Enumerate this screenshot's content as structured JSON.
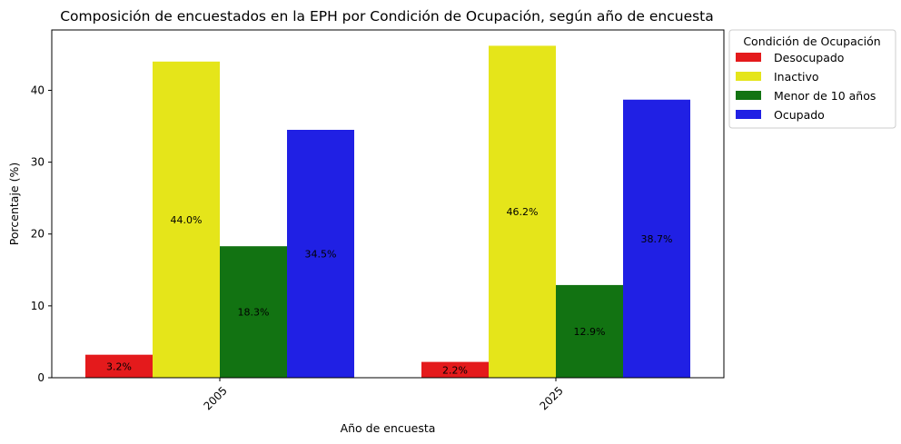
{
  "chart_data": {
    "type": "bar",
    "title": "Composición de encuestados en la EPH por Condición de Ocupación, según año de encuesta",
    "xlabel": "Año de encuesta",
    "ylabel": "Porcentaje (%)",
    "categories": [
      "2005",
      "2025"
    ],
    "ylim": [
      0,
      48.4
    ],
    "yticks": [
      "0",
      "10",
      "20",
      "30",
      "40"
    ],
    "grid": false,
    "legend": {
      "title": "Condición de Ocupación",
      "placement": "outside-top-right"
    },
    "series": [
      {
        "name": "Desocupado",
        "color": "#e41a1c",
        "values": [
          3.2,
          2.2
        ],
        "labels": [
          "3.2%",
          "2.2%"
        ]
      },
      {
        "name": "Inactivo",
        "color": "#e5e51a",
        "values": [
          44.0,
          46.2
        ],
        "labels": [
          "44.0%",
          "46.2%"
        ]
      },
      {
        "name": "Menor de 10 años",
        "color": "#127312",
        "values": [
          18.3,
          12.9
        ],
        "labels": [
          "18.3%",
          "12.9%"
        ]
      },
      {
        "name": "Ocupado",
        "color": "#2020e4",
        "values": [
          34.5,
          38.7
        ],
        "labels": [
          "34.5%",
          "38.7%"
        ]
      }
    ]
  }
}
